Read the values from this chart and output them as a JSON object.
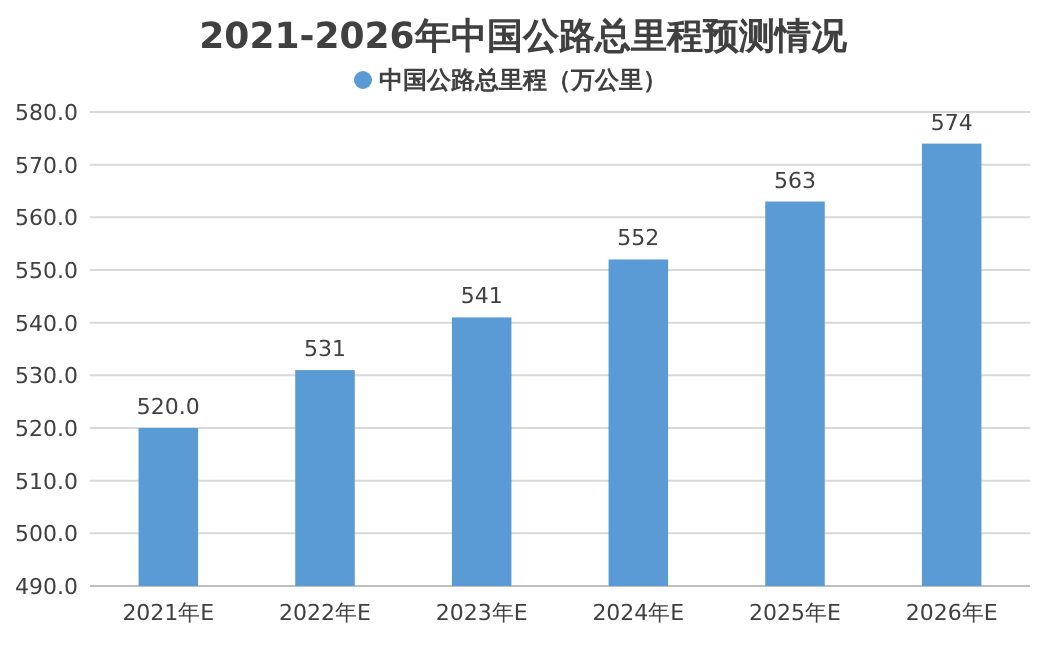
{
  "chart_data": {
    "type": "bar",
    "title": "2021-2026年中国公路总里程预测情况",
    "categories": [
      "2021年E",
      "2022年E",
      "2023年E",
      "2024年E",
      "2025年E",
      "2026年E"
    ],
    "series": [
      {
        "name": "中国公路总里程（万公里）",
        "color": "#5b9bd5",
        "values": [
          520.0,
          531,
          541,
          552,
          563,
          574
        ],
        "value_labels": [
          "520.0",
          "531",
          "541",
          "552",
          "563",
          "574"
        ]
      }
    ],
    "ylim": [
      490,
      580
    ],
    "yticks": [
      {
        "value": 490,
        "label": "490.0"
      },
      {
        "value": 500,
        "label": "500.0"
      },
      {
        "value": 510,
        "label": "510.0"
      },
      {
        "value": 520,
        "label": "520.0"
      },
      {
        "value": 530,
        "label": "530.0"
      },
      {
        "value": 540,
        "label": "540.0"
      },
      {
        "value": 550,
        "label": "550.0"
      },
      {
        "value": 560,
        "label": "560.0"
      },
      {
        "value": 570,
        "label": "570.0"
      },
      {
        "value": 580,
        "label": "580.0"
      }
    ],
    "grid": "y",
    "legend": "top"
  }
}
